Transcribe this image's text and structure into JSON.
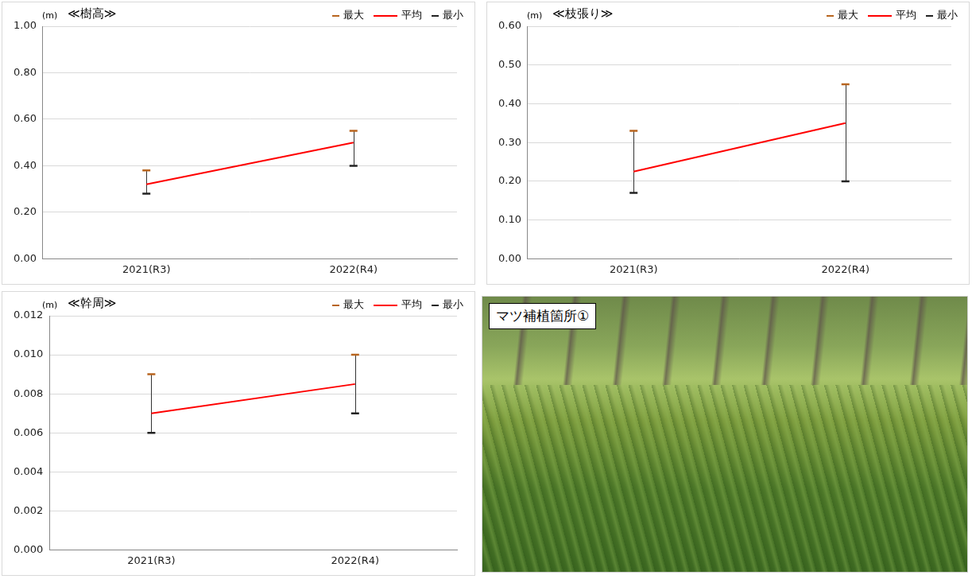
{
  "chart_data": [
    {
      "type": "line",
      "title": "≪樹高≫",
      "y_label": "(m)",
      "categories": [
        "2021(R3)",
        "2022(R4)"
      ],
      "series": [
        {
          "name": "最大",
          "color": "#b8651f",
          "marker": "dash",
          "values": [
            0.38,
            0.55
          ]
        },
        {
          "name": "平均",
          "color": "#ff0000",
          "line_style": "solid",
          "values": [
            0.32,
            0.5
          ]
        },
        {
          "name": "最小",
          "color": "#222222",
          "marker": "dash",
          "values": [
            0.28,
            0.4
          ]
        }
      ],
      "ylim": [
        0,
        1
      ],
      "yticks": [
        {
          "value": 0,
          "label": "0.00"
        },
        {
          "value": 0.2,
          "label": "0.20"
        },
        {
          "value": 0.4,
          "label": "0.40"
        },
        {
          "value": 0.6,
          "label": "0.60"
        },
        {
          "value": 0.8,
          "label": "0.80"
        },
        {
          "value": 1,
          "label": "1.00"
        }
      ],
      "grid": true,
      "legend": "top-right"
    },
    {
      "type": "line",
      "title": "≪枝張り≫",
      "y_label": "(m)",
      "categories": [
        "2021(R3)",
        "2022(R4)"
      ],
      "series": [
        {
          "name": "最大",
          "color": "#b8651f",
          "marker": "dash",
          "values": [
            0.33,
            0.45
          ]
        },
        {
          "name": "平均",
          "color": "#ff0000",
          "line_style": "solid",
          "values": [
            0.225,
            0.35
          ]
        },
        {
          "name": "最小",
          "color": "#222222",
          "marker": "dash",
          "values": [
            0.17,
            0.2
          ]
        }
      ],
      "ylim": [
        0,
        0.6
      ],
      "yticks": [
        {
          "value": 0,
          "label": "0.00"
        },
        {
          "value": 0.1,
          "label": "0.10"
        },
        {
          "value": 0.2,
          "label": "0.20"
        },
        {
          "value": 0.3,
          "label": "0.30"
        },
        {
          "value": 0.4,
          "label": "0.40"
        },
        {
          "value": 0.5,
          "label": "0.50"
        },
        {
          "value": 0.6,
          "label": "0.60"
        }
      ],
      "grid": true,
      "legend": "top-right"
    },
    {
      "type": "line",
      "title": "≪幹周≫",
      "y_label": "(m)",
      "categories": [
        "2021(R3)",
        "2022(R4)"
      ],
      "series": [
        {
          "name": "最大",
          "color": "#b8651f",
          "marker": "dash",
          "values": [
            0.009,
            0.01
          ]
        },
        {
          "name": "平均",
          "color": "#ff0000",
          "line_style": "solid",
          "values": [
            0.007,
            0.0085
          ]
        },
        {
          "name": "最小",
          "color": "#222222",
          "marker": "dash",
          "values": [
            0.006,
            0.007
          ]
        }
      ],
      "ylim": [
        0,
        0.012
      ],
      "yticks": [
        {
          "value": 0,
          "label": "0.000"
        },
        {
          "value": 0.002,
          "label": "0.002"
        },
        {
          "value": 0.004,
          "label": "0.004"
        },
        {
          "value": 0.006,
          "label": "0.006"
        },
        {
          "value": 0.008,
          "label": "0.008"
        },
        {
          "value": 0.01,
          "label": "0.010"
        },
        {
          "value": 0.012,
          "label": "0.012"
        }
      ],
      "grid": true,
      "legend": "top-right"
    }
  ],
  "photo": {
    "label": "マツ補植箇所①"
  }
}
